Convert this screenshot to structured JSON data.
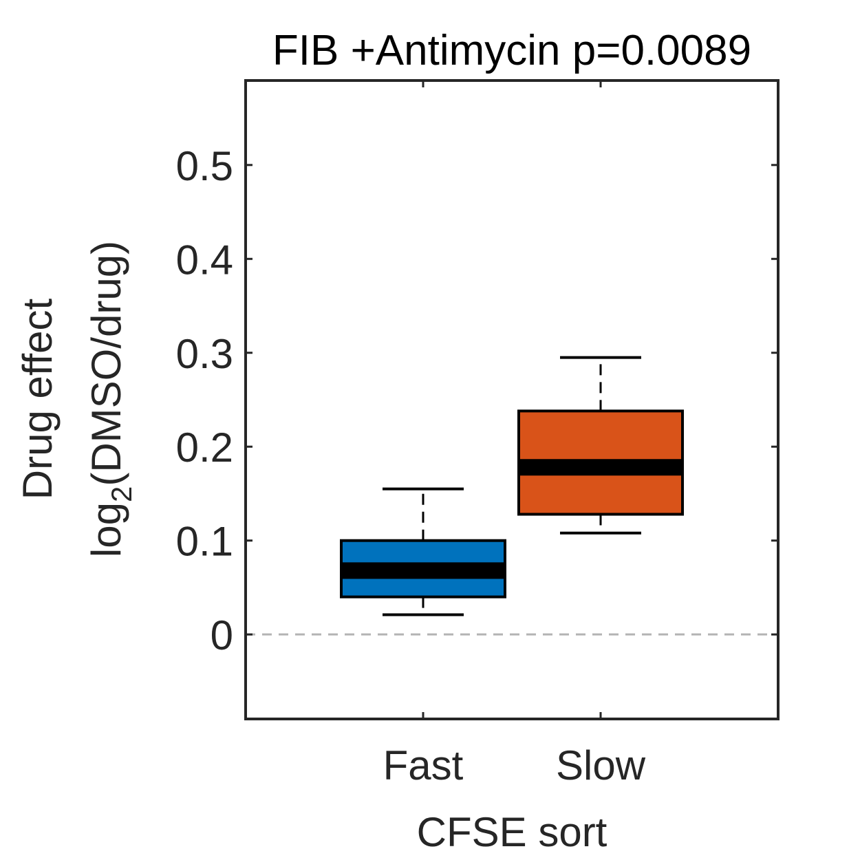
{
  "chart_data": {
    "type": "box",
    "title": "FIB +Antimycin p=0.0089",
    "xlabel": "CFSE sort",
    "ylabel_line1": "Drug effect",
    "ylabel_line2_prefix": "log",
    "ylabel_line2_sub": "2",
    "ylabel_line2_suffix": "(DMSO/drug)",
    "ylim": [
      -0.09,
      0.59
    ],
    "yticks": [
      0,
      0.1,
      0.2,
      0.3,
      0.4,
      0.5
    ],
    "ytick_labels": [
      "0",
      "0.1",
      "0.2",
      "0.3",
      "0.4",
      "0.5"
    ],
    "reference_line": 0,
    "categories": [
      "Fast",
      "Slow"
    ],
    "boxes": [
      {
        "category": "Fast",
        "whisker_low": 0.021,
        "q1": 0.04,
        "median": 0.068,
        "q3": 0.1,
        "whisker_high": 0.155,
        "color": "#0072BD"
      },
      {
        "category": "Slow",
        "whisker_low": 0.108,
        "q1": 0.128,
        "median": 0.178,
        "q3": 0.238,
        "whisker_high": 0.295,
        "color": "#D95319"
      }
    ]
  }
}
